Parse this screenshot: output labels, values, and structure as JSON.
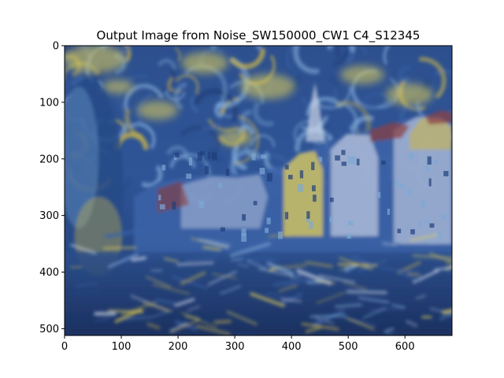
{
  "figure": {
    "title": "Output Image from Noise_SW150000_CW1 C4_S12345"
  },
  "image_panel": {
    "description_tag": "stylized-townscape",
    "palette": {
      "sky_dark": "#1f3f7a",
      "sky_mid": "#3a64a8",
      "swirl_light": "#7ea8d6",
      "ochre": "#c9b44a",
      "yellow": "#e2cf5a",
      "roof_red": "#8a3b3a",
      "facade_light": "#cfd7e8",
      "water_dark": "#1b2f5e",
      "frame": "#000000"
    }
  },
  "axes": {
    "xlim": [
      0,
      683
    ],
    "ylim": [
      512,
      0
    ],
    "x_ticks": [
      "0",
      "100",
      "200",
      "300",
      "400",
      "500",
      "600"
    ],
    "y_ticks": [
      "0",
      "100",
      "200",
      "300",
      "400",
      "500"
    ]
  }
}
